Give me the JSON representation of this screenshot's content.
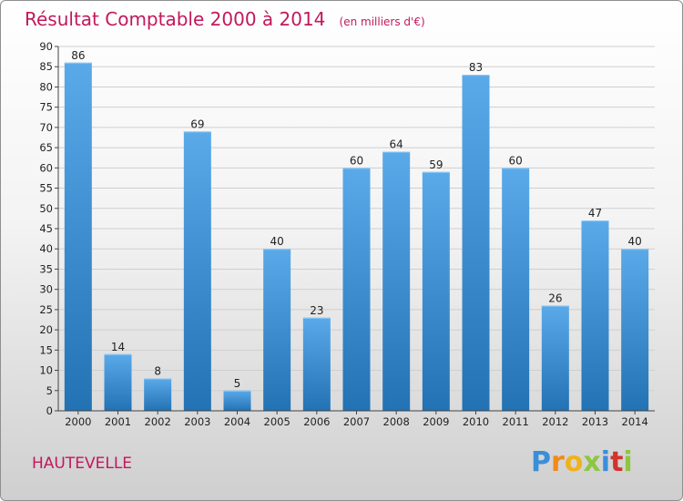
{
  "chart_data": {
    "type": "bar",
    "title": "Résultat Comptable 2000 à 2014",
    "subtitle": "(en milliers d'€)",
    "categories": [
      "2000",
      "2001",
      "2002",
      "2003",
      "2004",
      "2005",
      "2006",
      "2007",
      "2008",
      "2009",
      "2010",
      "2011",
      "2012",
      "2013",
      "2014"
    ],
    "values": [
      86,
      14,
      8,
      69,
      5,
      40,
      23,
      60,
      64,
      59,
      83,
      60,
      26,
      47,
      40
    ],
    "ylim": [
      0,
      90
    ],
    "yticks": [
      0,
      5,
      10,
      15,
      20,
      25,
      30,
      35,
      40,
      45,
      50,
      55,
      60,
      65,
      70,
      75,
      80,
      85,
      90
    ],
    "xlabel": "",
    "ylabel": "",
    "grid": true,
    "bar_color_top": "#5aaaea",
    "bar_color_bottom": "#2272b4"
  },
  "place_name": "HAUTEVELLE",
  "logo": {
    "letters": [
      "P",
      "r",
      "o",
      "x",
      "i",
      "t",
      "i"
    ],
    "colors": [
      "#3a8fd8",
      "#f08a1c",
      "#f0b21c",
      "#8dc63f",
      "#3a8fd8",
      "#d0342c",
      "#8dc63f"
    ]
  }
}
